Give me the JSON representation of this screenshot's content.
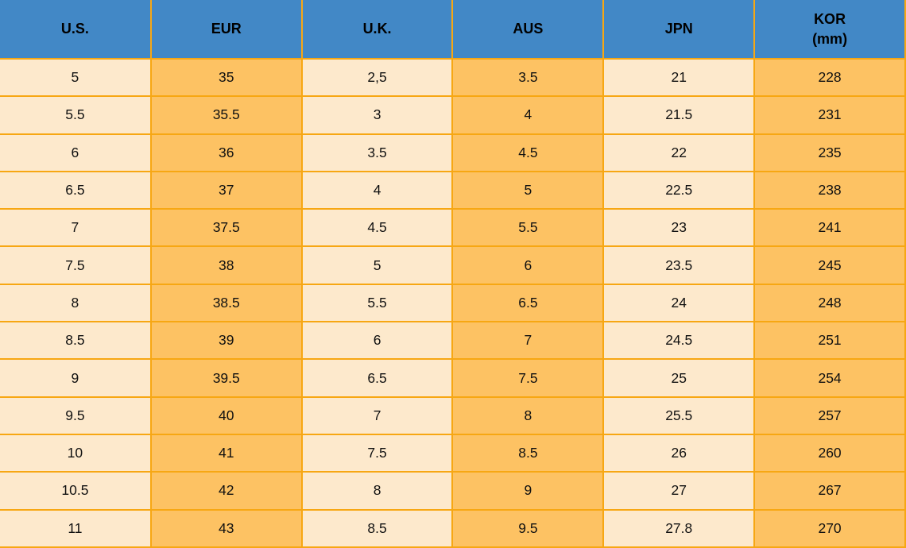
{
  "table": {
    "title": "shoe-size-conversion-table",
    "columns": [
      {
        "key": "us",
        "label": "U.S."
      },
      {
        "key": "eur",
        "label": "EUR"
      },
      {
        "key": "uk",
        "label": "U.K."
      },
      {
        "key": "aus",
        "label": "AUS"
      },
      {
        "key": "jpn",
        "label": "JPN"
      },
      {
        "key": "kor",
        "label": "KOR",
        "sublabel": "(mm)"
      }
    ],
    "rows": [
      [
        "5",
        "35",
        "2,5",
        "3.5",
        "21",
        "228"
      ],
      [
        "5.5",
        "35.5",
        "3",
        "4",
        "21.5",
        "231"
      ],
      [
        "6",
        "36",
        "3.5",
        "4.5",
        "22",
        "235"
      ],
      [
        "6.5",
        "37",
        "4",
        "5",
        "22.5",
        "238"
      ],
      [
        "7",
        "37.5",
        "4.5",
        "5.5",
        "23",
        "241"
      ],
      [
        "7.5",
        "38",
        "5",
        "6",
        "23.5",
        "245"
      ],
      [
        "8",
        "38.5",
        "5.5",
        "6.5",
        "24",
        "248"
      ],
      [
        "8.5",
        "39",
        "6",
        "7",
        "24.5",
        "251"
      ],
      [
        "9",
        "39.5",
        "6.5",
        "7.5",
        "25",
        "254"
      ],
      [
        "9.5",
        "40",
        "7",
        "8",
        "25.5",
        "257"
      ],
      [
        "10",
        "41",
        "7.5",
        "8.5",
        "26",
        "260"
      ],
      [
        "10.5",
        "42",
        "8",
        "9",
        "27",
        "267"
      ],
      [
        "11",
        "43",
        "8.5",
        "9.5",
        "27.8",
        "270"
      ]
    ]
  },
  "colors": {
    "header_bg": "#4288C6",
    "orange_cell": "#FDC263",
    "cream_cell": "#FDE9CC",
    "grid_border": "#F7A713",
    "text": "#111111"
  }
}
